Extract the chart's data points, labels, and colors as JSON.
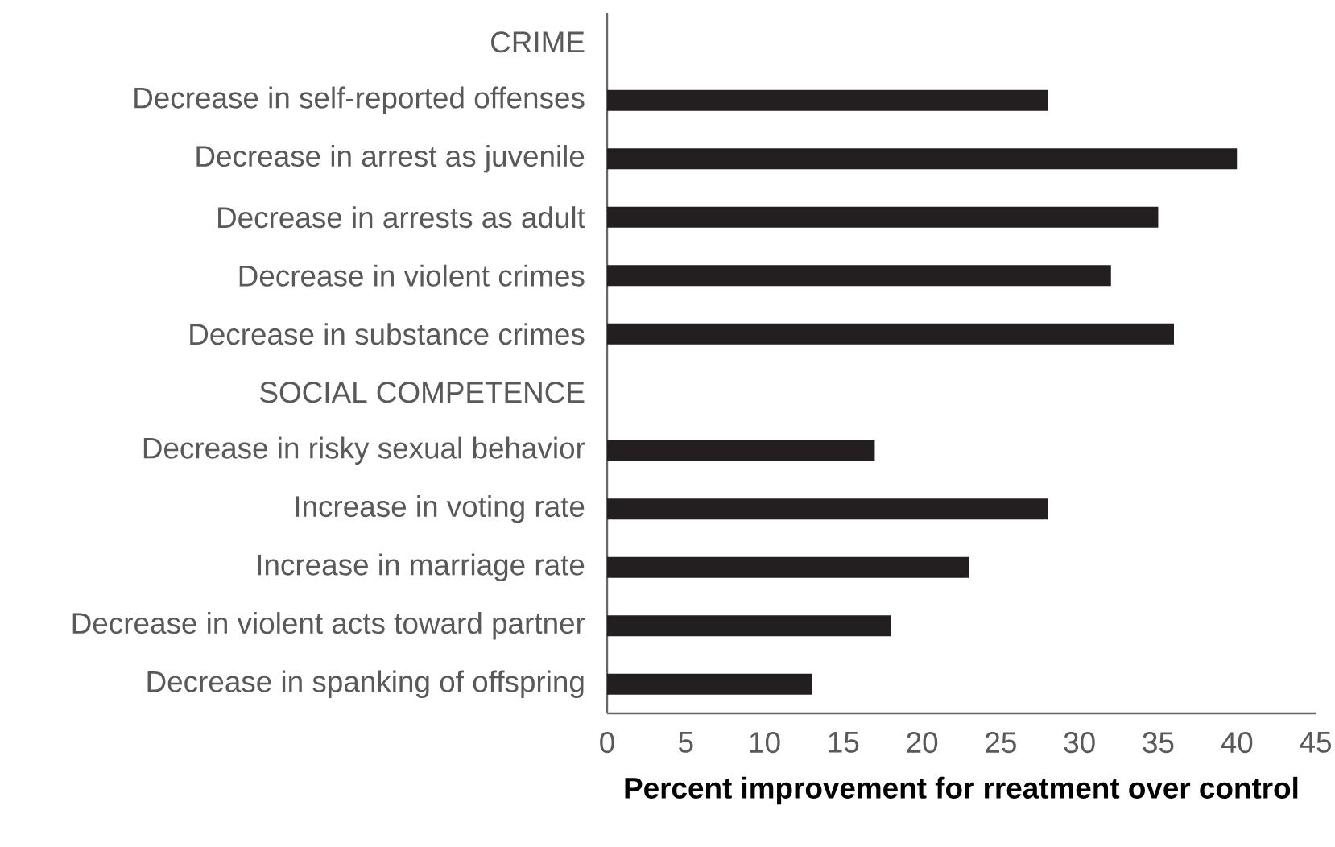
{
  "chart_data": {
    "type": "bar",
    "orientation": "horizontal",
    "xlabel": "Percent improvement for rreatment over control",
    "categories": [
      "CRIME",
      "Decrease in self-reported offenses",
      "Decrease in arrest as juvenile",
      "Decrease in arrests as adult",
      "Decrease in violent crimes",
      "Decrease in substance crimes",
      "SOCIAL COMPETENCE",
      "Decrease in risky sexual behavior",
      "Increase in voting rate",
      "Increase in marriage rate",
      "Decrease in violent acts toward partner",
      "Decrease in spanking of offspring"
    ],
    "values": [
      null,
      28,
      40,
      35,
      32,
      36,
      null,
      17,
      28,
      23,
      18,
      13
    ],
    "color": "#231f20",
    "xlim": [
      0,
      45
    ],
    "xticks": [
      0,
      5,
      10,
      15,
      20,
      25,
      30,
      35,
      40,
      45
    ],
    "grid": false
  }
}
